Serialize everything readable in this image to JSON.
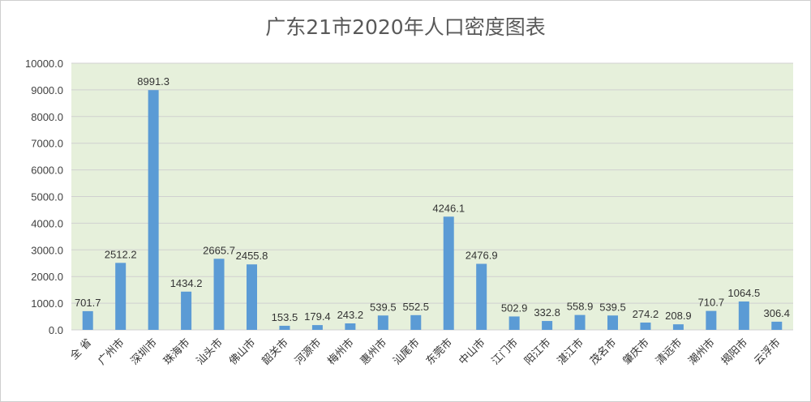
{
  "chart_data": {
    "type": "bar",
    "title": "广东21市2020年人口密度图表",
    "xlabel": "",
    "ylabel": "",
    "ylim": [
      0,
      10000
    ],
    "yticks": [
      "0.0",
      "1000.0",
      "2000.0",
      "3000.0",
      "4000.0",
      "5000.0",
      "6000.0",
      "7000.0",
      "8000.0",
      "9000.0",
      "10000.0"
    ],
    "categories": [
      "全 省",
      "广州市",
      "深圳市",
      "珠海市",
      "汕头市",
      "佛山市",
      "韶关市",
      "河源市",
      "梅州市",
      "惠州市",
      "汕尾市",
      "东莞市",
      "中山市",
      "江门市",
      "阳江市",
      "湛江市",
      "茂名市",
      "肇庆市",
      "清远市",
      "潮州市",
      "揭阳市",
      "云浮市"
    ],
    "values": [
      701.7,
      2512.2,
      8991.3,
      1434.2,
      2665.7,
      2455.8,
      153.5,
      179.4,
      243.2,
      539.5,
      552.5,
      4246.1,
      2476.9,
      502.9,
      332.8,
      558.9,
      539.5,
      274.2,
      208.9,
      710.7,
      1064.5,
      306.4
    ],
    "labels": [
      "701.7",
      "2512.2",
      "8991.3",
      "1434.2",
      "2665.7",
      "2455.8",
      "153.5",
      "179.4",
      "243.2",
      "539.5",
      "552.5",
      "4246.1",
      "2476.9",
      "502.9",
      "332.8",
      "558.9",
      "539.5",
      "274.2",
      "208.9",
      "710.7",
      "1064.5",
      "306.4"
    ],
    "grid": true,
    "legend": "none",
    "colors": {
      "bar": "#5b9bd5",
      "plot_bg": "#e6f0db",
      "grid": "#d0d0d0"
    }
  }
}
